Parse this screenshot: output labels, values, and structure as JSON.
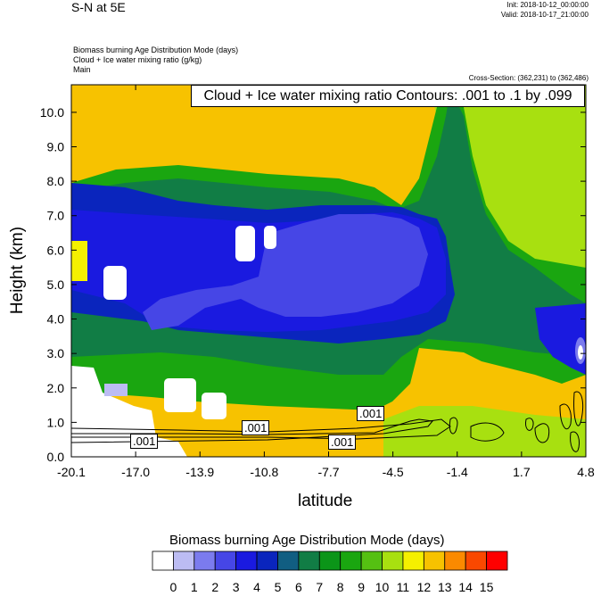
{
  "header": {
    "left_title": "S-N at 5E",
    "init": "Init: 2018-10-12_00:00:00",
    "valid": "Valid: 2018-10-17_21:00:00",
    "desc_line1": "Biomass burning Age Distribution Mode   (days)",
    "desc_line2": "Cloud + Ice water mixing ratio   (g/kg)",
    "desc_line3": "Main",
    "cross_section": "Cross-Section: (362,231) to (362,486)"
  },
  "chart_data": {
    "type": "heatmap",
    "xlabel": "latitude",
    "ylabel": "Height (km)",
    "xlim": [
      -20.1,
      4.8
    ],
    "ylim": [
      0,
      10.8
    ],
    "x_ticks": [
      "-20.1",
      "-17.0",
      "-13.9",
      "-10.8",
      "-7.7",
      "-4.5",
      "-1.4",
      "1.7",
      "4.8"
    ],
    "y_ticks": [
      "0.0",
      "1.0",
      "2.0",
      "3.0",
      "4.0",
      "5.0",
      "6.0",
      "7.0",
      "8.0",
      "9.0",
      "10.0"
    ],
    "contour_title": "Cloud + Ice water mixing ratio Contours: .001 to .1 by .099",
    "contour_labels": [
      ".001",
      ".001",
      ".001",
      ".001"
    ],
    "colorbar": {
      "title": "Biomass burning Age Distribution Mode  (days)",
      "labels": [
        "0",
        "1",
        "2",
        "3",
        "4",
        "5",
        "6",
        "7",
        "8",
        "9",
        "10",
        "11",
        "12",
        "13",
        "14",
        "15"
      ],
      "colors": [
        "#ffffff",
        "#bcbcf3",
        "#7b7bee",
        "#4646e6",
        "#1a1ae0",
        "#0a25bd",
        "#115e82",
        "#117d45",
        "#0b9518",
        "#1aa610",
        "#55c012",
        "#a8e010",
        "#f5f000",
        "#f7c200",
        "#fb8a00",
        "#fa4800",
        "#ff0000"
      ]
    }
  }
}
